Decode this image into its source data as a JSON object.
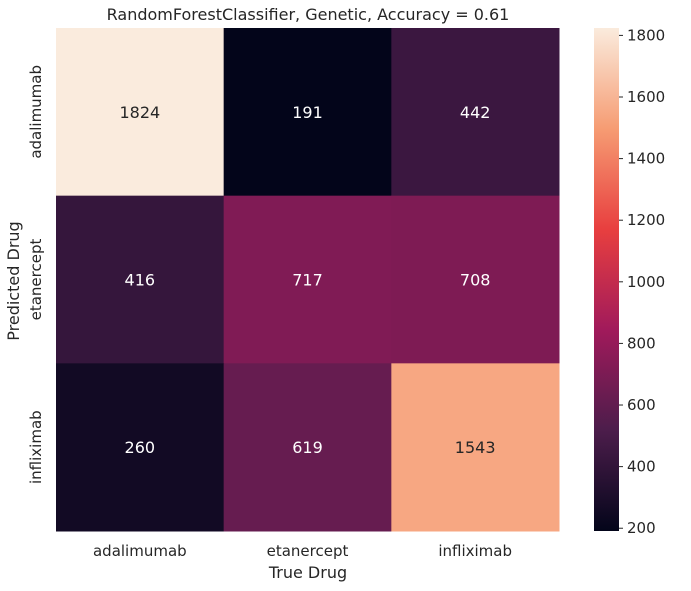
{
  "chart_data": {
    "type": "heatmap",
    "title": "RandomForestClassifier, Genetic, Accuracy = 0.61",
    "xlabel": "True Drug",
    "ylabel": "Predicted Drug",
    "x_categories": [
      "adalimumab",
      "etanercept",
      "infliximab"
    ],
    "y_categories": [
      "adalimumab",
      "etanercept",
      "infliximab"
    ],
    "values": [
      [
        1824,
        191,
        442
      ],
      [
        416,
        717,
        708
      ],
      [
        260,
        619,
        1543
      ]
    ],
    "colorbar": {
      "range": [
        191,
        1824
      ],
      "ticks": [
        "200",
        "400",
        "600",
        "800",
        "1000",
        "1200",
        "1400",
        "1600",
        "1800"
      ]
    },
    "colormap_stops": [
      "#03051a",
      "#4c1d4b",
      "#a11a5b",
      "#e83f3f",
      "#f69c73",
      "#faebdd"
    ]
  }
}
